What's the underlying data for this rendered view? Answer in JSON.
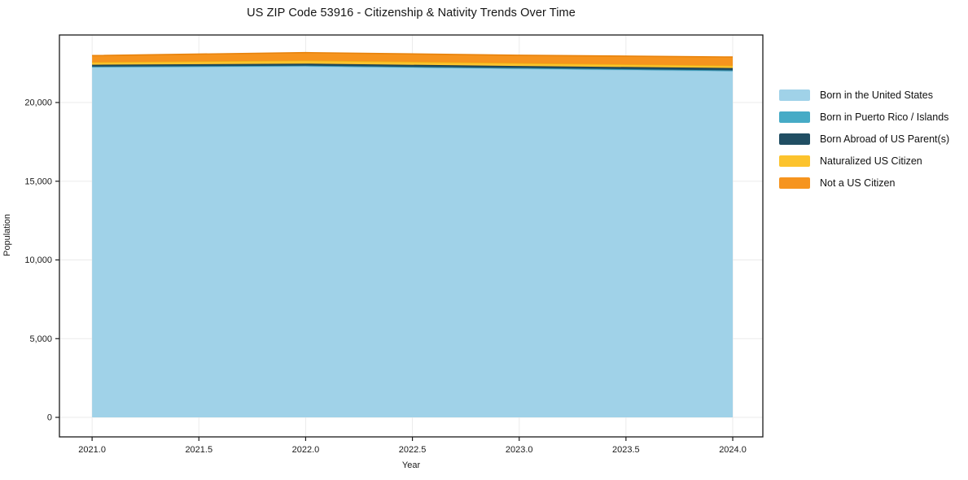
{
  "chart_data": {
    "type": "area",
    "stacked": true,
    "title": "US ZIP Code 53916 - Citizenship & Nativity Trends Over Time",
    "xlabel": "Year",
    "ylabel": "Population",
    "grid": true,
    "legend_position": "right",
    "x": [
      2021,
      2022,
      2023,
      2024
    ],
    "series": [
      {
        "name": "Born in the United States",
        "color": "#A0D2E8",
        "edge_color": "#8CC5DF",
        "values": [
          22250,
          22300,
          22150,
          22000
        ]
      },
      {
        "name": "Born in Puerto Rico / Islands",
        "color": "#46ABC6",
        "edge_color": "#3A99B5",
        "values": [
          30,
          40,
          40,
          40
        ]
      },
      {
        "name": "Born Abroad of US Parent(s)",
        "color": "#204E63",
        "edge_color": "#173A4B",
        "values": [
          120,
          130,
          130,
          150
        ]
      },
      {
        "name": "Naturalized US Citizen",
        "color": "#FCC32D",
        "edge_color": "#EFB213",
        "values": [
          160,
          200,
          180,
          150
        ]
      },
      {
        "name": "Not a US Citizen",
        "color": "#F6941E",
        "edge_color": "#E8830C",
        "values": [
          420,
          500,
          500,
          550
        ]
      }
    ],
    "xlim": [
      2020.847,
      2024.141
    ],
    "ylim": [
      -1240,
      24290
    ],
    "xticks": {
      "values": [
        2021.0,
        2021.5,
        2022.0,
        2022.5,
        2023.0,
        2023.5,
        2024.0
      ],
      "labels": [
        "2021.0",
        "2021.5",
        "2022.0",
        "2022.5",
        "2023.0",
        "2023.5",
        "2024.0"
      ]
    },
    "yticks": {
      "values": [
        0,
        5000,
        10000,
        15000,
        20000
      ],
      "labels": [
        "0",
        "5,000",
        "10,000",
        "15,000",
        "20,000"
      ]
    },
    "colors": {
      "spine": "#1a1a1a",
      "grid": "#ebebeb",
      "tick_text": "#1a1a1a",
      "background": "#ffffff"
    }
  }
}
